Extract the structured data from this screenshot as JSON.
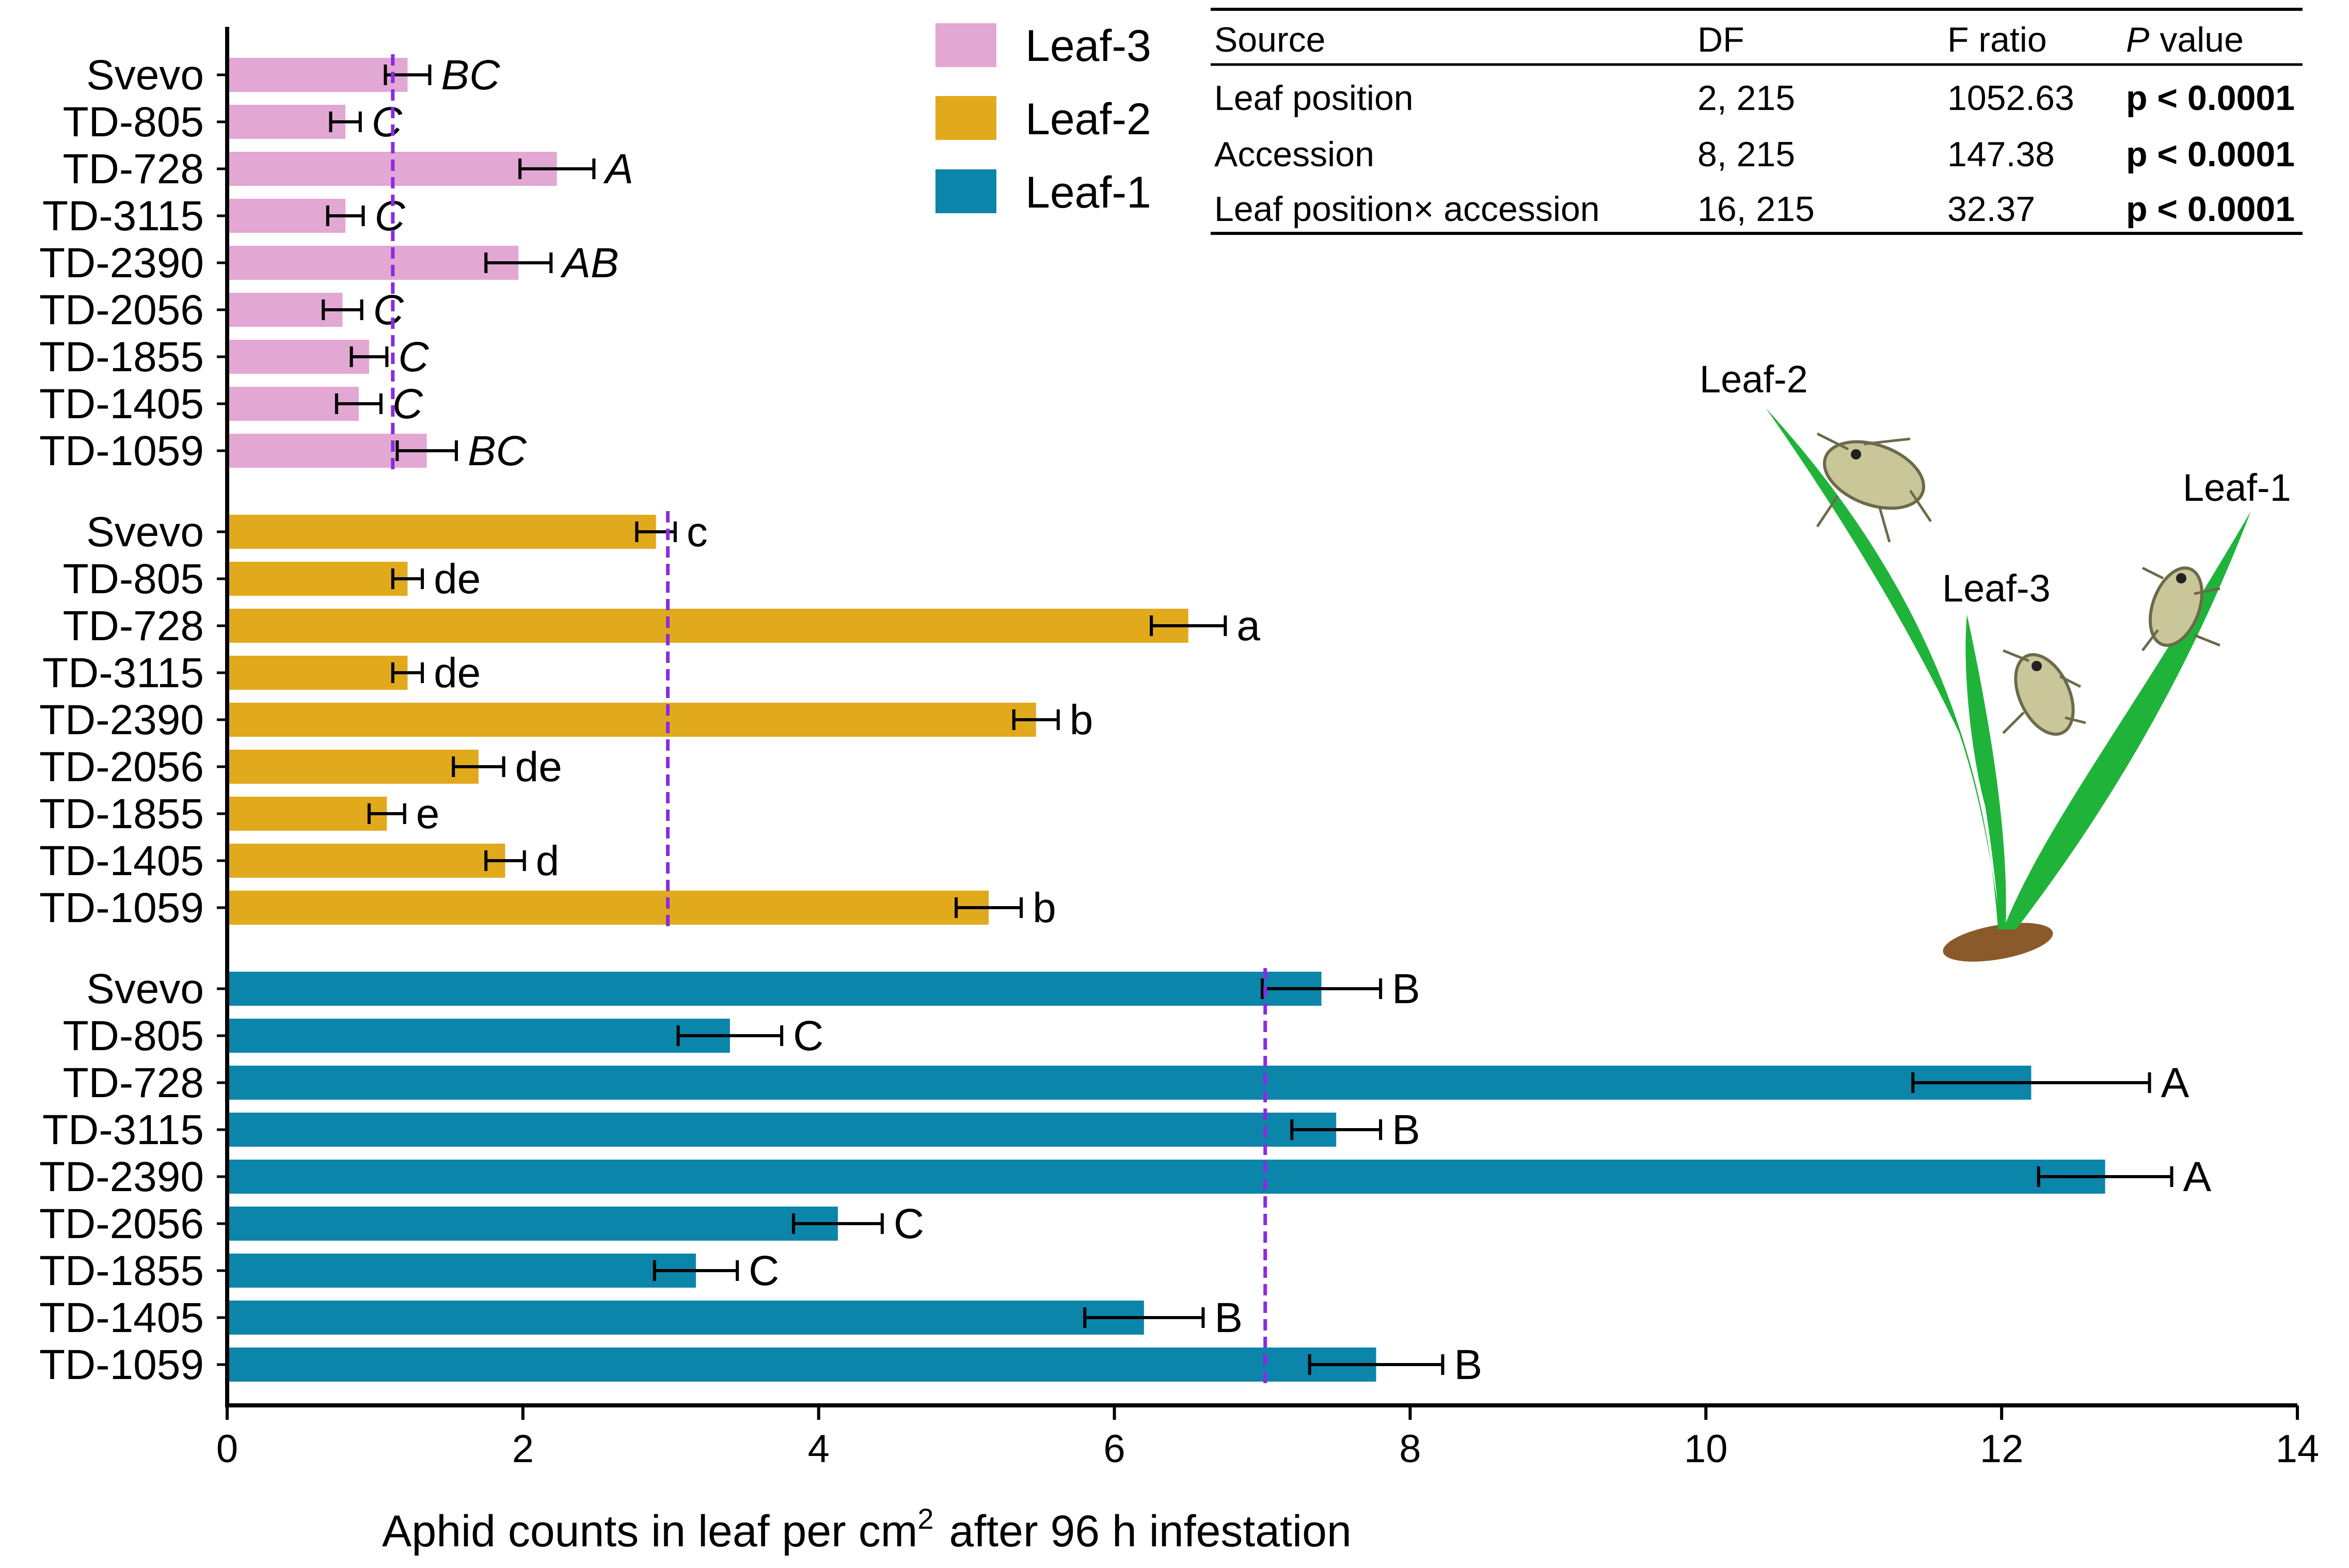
{
  "chart_data": {
    "type": "bar",
    "orientation": "horizontal",
    "xlabel": "Aphid counts in leaf per cm",
    "xlabel_superscript": "2",
    "xlabel_suffix": "after 96 h infestation",
    "xlim": [
      0,
      14
    ],
    "xticks": [
      0,
      2,
      4,
      6,
      8,
      10,
      12,
      14
    ],
    "categories": [
      "Svevo",
      "TD-805",
      "TD-728",
      "TD-3115",
      "TD-2390",
      "TD-2056",
      "TD-1855",
      "TD-1405",
      "TD-1059"
    ],
    "legend": [
      "Leaf-3",
      "Leaf-2",
      "Leaf-1"
    ],
    "series": [
      {
        "name": "Leaf-3",
        "color": "#e3a7d3",
        "values": [
          1.22,
          0.8,
          2.23,
          0.8,
          1.97,
          0.78,
          0.96,
          0.89,
          1.35
        ],
        "errors": [
          0.15,
          0.1,
          0.25,
          0.12,
          0.22,
          0.13,
          0.12,
          0.15,
          0.2
        ],
        "letters": [
          "BC",
          "C",
          "A",
          "C",
          "AB",
          "C",
          "C",
          "C",
          "BC"
        ],
        "italic": true,
        "reference_line": 1.12
      },
      {
        "name": "Leaf-2",
        "color": "#e1a91c",
        "values": [
          2.9,
          1.22,
          6.5,
          1.22,
          5.47,
          1.7,
          1.08,
          1.88,
          5.15
        ],
        "errors": [
          0.13,
          0.1,
          0.25,
          0.1,
          0.15,
          0.17,
          0.12,
          0.13,
          0.22
        ],
        "letters": [
          "c",
          "de",
          "a",
          "de",
          "b",
          "de",
          "e",
          "d",
          "b"
        ],
        "italic": false,
        "reference_line": 2.98
      },
      {
        "name": "Leaf-1",
        "color": "#0b85a9",
        "values": [
          7.4,
          3.4,
          12.2,
          7.5,
          12.7,
          4.13,
          3.17,
          6.2,
          7.77
        ],
        "errors": [
          0.4,
          0.35,
          0.8,
          0.3,
          0.45,
          0.3,
          0.28,
          0.4,
          0.45
        ],
        "letters": [
          "B",
          "C",
          "A",
          "B",
          "A",
          "C",
          "C",
          "B",
          "B"
        ],
        "italic": false,
        "reference_line": 7.02
      }
    ]
  },
  "stats_table": {
    "headers": [
      "Source",
      "DF",
      "F ratio",
      "P",
      "value"
    ],
    "rows": [
      {
        "source": "Leaf position",
        "df": "2, 215",
        "f": "1052.63",
        "p": "p < 0.0001"
      },
      {
        "source": "Accession",
        "df": "8, 215",
        "f": "147.38",
        "p": "p < 0.0001"
      },
      {
        "source": "Leaf position× accession",
        "df": "16, 215",
        "f": "32.37",
        "p": "p < 0.0001"
      }
    ]
  },
  "illustration": {
    "labels": [
      "Leaf-2",
      "Leaf-1",
      "Leaf-3"
    ],
    "leaf_color": "#1fb33a",
    "root_color": "#8b5a2b"
  }
}
